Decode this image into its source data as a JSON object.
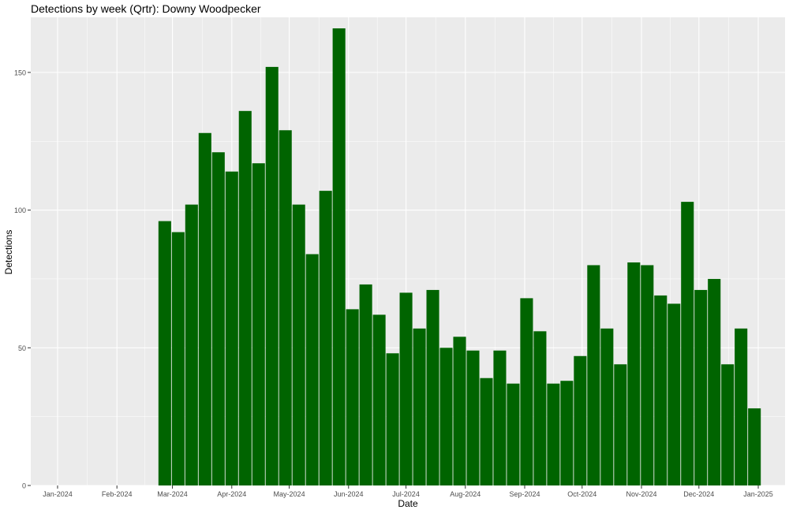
{
  "chart_data": {
    "type": "bar",
    "title": "Detections by week (Qrtr): Downy Woodpecker",
    "xlabel": "Date",
    "ylabel": "Detections",
    "x_tick_labels": [
      "Jan-2024",
      "Feb-2024",
      "Mar-2024",
      "Apr-2024",
      "May-2024",
      "Jun-2024",
      "Jul-2024",
      "Aug-2024",
      "Sep-2024",
      "Oct-2024",
      "Nov-2024",
      "Dec-2024",
      "Jan-2025"
    ],
    "x_tick_dates": [
      "2024-01-01",
      "2024-02-01",
      "2024-03-01",
      "2024-04-01",
      "2024-05-01",
      "2024-06-01",
      "2024-07-01",
      "2024-08-01",
      "2024-09-01",
      "2024-10-01",
      "2024-11-01",
      "2024-12-01",
      "2025-01-01"
    ],
    "xlim": [
      "2023-12-18",
      "2025-01-15"
    ],
    "y_ticks": [
      0,
      50,
      100,
      150
    ],
    "ylim": [
      0,
      170
    ],
    "grid": true,
    "legend": "none",
    "bar_color": "#006400",
    "panel_background": "#ebebeb",
    "grid_color": "#ffffff",
    "x": [
      "2024-02-26",
      "2024-03-04",
      "2024-03-11",
      "2024-03-18",
      "2024-03-25",
      "2024-04-01",
      "2024-04-08",
      "2024-04-15",
      "2024-04-22",
      "2024-04-29",
      "2024-05-06",
      "2024-05-13",
      "2024-05-20",
      "2024-05-27",
      "2024-06-03",
      "2024-06-10",
      "2024-06-17",
      "2024-06-24",
      "2024-07-01",
      "2024-07-08",
      "2024-07-15",
      "2024-07-22",
      "2024-07-29",
      "2024-08-05",
      "2024-08-12",
      "2024-08-19",
      "2024-08-26",
      "2024-09-02",
      "2024-09-09",
      "2024-09-16",
      "2024-09-23",
      "2024-09-30",
      "2024-10-07",
      "2024-10-14",
      "2024-10-21",
      "2024-10-28",
      "2024-11-04",
      "2024-11-11",
      "2024-11-18",
      "2024-11-25",
      "2024-12-02",
      "2024-12-09",
      "2024-12-16",
      "2024-12-23",
      "2024-12-30"
    ],
    "values": [
      96,
      92,
      102,
      128,
      121,
      114,
      136,
      117,
      152,
      129,
      102,
      84,
      107,
      166,
      64,
      73,
      62,
      48,
      70,
      57,
      71,
      50,
      54,
      49,
      39,
      49,
      37,
      68,
      56,
      37,
      38,
      47,
      80,
      57,
      44,
      81,
      80,
      69,
      66,
      103,
      71,
      75,
      44,
      57,
      28
    ]
  }
}
